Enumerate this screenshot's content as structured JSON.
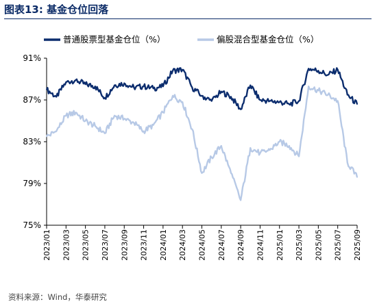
{
  "figure": {
    "title": "图表13:  基金仓位回落",
    "source": "资料来源：Wind，华泰研究"
  },
  "chart_data": {
    "type": "line",
    "title": "",
    "xlabel": "",
    "ylabel": "",
    "ylim": [
      75,
      91
    ],
    "y_ticks": [
      "75%",
      "79%",
      "83%",
      "87%",
      "91%"
    ],
    "x_tick_labels": [
      "2023/01",
      "2023/03",
      "2023/05",
      "2023/07",
      "2023/09",
      "2023/11",
      "2024/01",
      "2024/03",
      "2024/05",
      "2024/07",
      "2024/09",
      "2024/11",
      "2025/01",
      "2025/03",
      "2025/05",
      "2025/07",
      "2025/09"
    ],
    "legend_position": "top",
    "grid": false,
    "series": [
      {
        "name": "普通股票型基金仓位（%）",
        "color": "#0c2d6e",
        "points": [
          [
            "2023/01",
            88.0
          ],
          [
            "2023/02",
            87.3
          ],
          [
            "2023/03",
            88.7
          ],
          [
            "2023/04",
            88.9
          ],
          [
            "2023/05",
            88.5
          ],
          [
            "2023/06",
            88.3
          ],
          [
            "2023/07",
            87.2
          ],
          [
            "2023/08",
            88.4
          ],
          [
            "2023/09",
            88.6
          ],
          [
            "2023/10",
            88.2
          ],
          [
            "2023/11",
            88.3
          ],
          [
            "2023/12",
            88.1
          ],
          [
            "2024/01",
            88.3
          ],
          [
            "2024/02",
            89.8
          ],
          [
            "2024/03",
            89.9
          ],
          [
            "2024/04",
            88.2
          ],
          [
            "2024/05",
            87.4
          ],
          [
            "2024/06",
            86.9
          ],
          [
            "2024/07",
            87.8
          ],
          [
            "2024/08",
            87.3
          ],
          [
            "2024/09",
            86.1
          ],
          [
            "2024/10",
            88.4
          ],
          [
            "2024/11",
            87.0
          ],
          [
            "2024/12",
            86.9
          ],
          [
            "2025/01",
            86.8
          ],
          [
            "2025/02",
            86.6
          ],
          [
            "2025/03",
            86.9
          ],
          [
            "2025/04",
            90.0
          ],
          [
            "2025/05",
            89.8
          ],
          [
            "2025/06",
            89.4
          ],
          [
            "2025/07",
            89.9
          ],
          [
            "2025/08",
            87.5
          ],
          [
            "2025/09",
            86.6
          ]
        ]
      },
      {
        "name": "偏股混合型基金仓位（%）",
        "color": "#b7c9e6",
        "points": [
          [
            "2023/01",
            83.5
          ],
          [
            "2023/02",
            84.0
          ],
          [
            "2023/03",
            85.5
          ],
          [
            "2023/04",
            85.8
          ],
          [
            "2023/05",
            85.0
          ],
          [
            "2023/06",
            84.5
          ],
          [
            "2023/07",
            83.8
          ],
          [
            "2023/08",
            85.5
          ],
          [
            "2023/09",
            85.2
          ],
          [
            "2023/10",
            84.8
          ],
          [
            "2023/11",
            84.0
          ],
          [
            "2023/12",
            84.6
          ],
          [
            "2024/01",
            85.8
          ],
          [
            "2024/02",
            87.4
          ],
          [
            "2024/03",
            86.8
          ],
          [
            "2024/04",
            84.2
          ],
          [
            "2024/05",
            80.0
          ],
          [
            "2024/06",
            81.5
          ],
          [
            "2024/07",
            82.6
          ],
          [
            "2024/08",
            80.0
          ],
          [
            "2024/09",
            77.4
          ],
          [
            "2024/10",
            82.4
          ],
          [
            "2024/11",
            81.9
          ],
          [
            "2024/12",
            82.2
          ],
          [
            "2025/01",
            83.0
          ],
          [
            "2025/02",
            82.6
          ],
          [
            "2025/03",
            81.6
          ],
          [
            "2025/04",
            88.3
          ],
          [
            "2025/05",
            87.9
          ],
          [
            "2025/06",
            87.5
          ],
          [
            "2025/07",
            86.9
          ],
          [
            "2025/08",
            81.0
          ],
          [
            "2025/09",
            79.6
          ]
        ]
      }
    ]
  }
}
